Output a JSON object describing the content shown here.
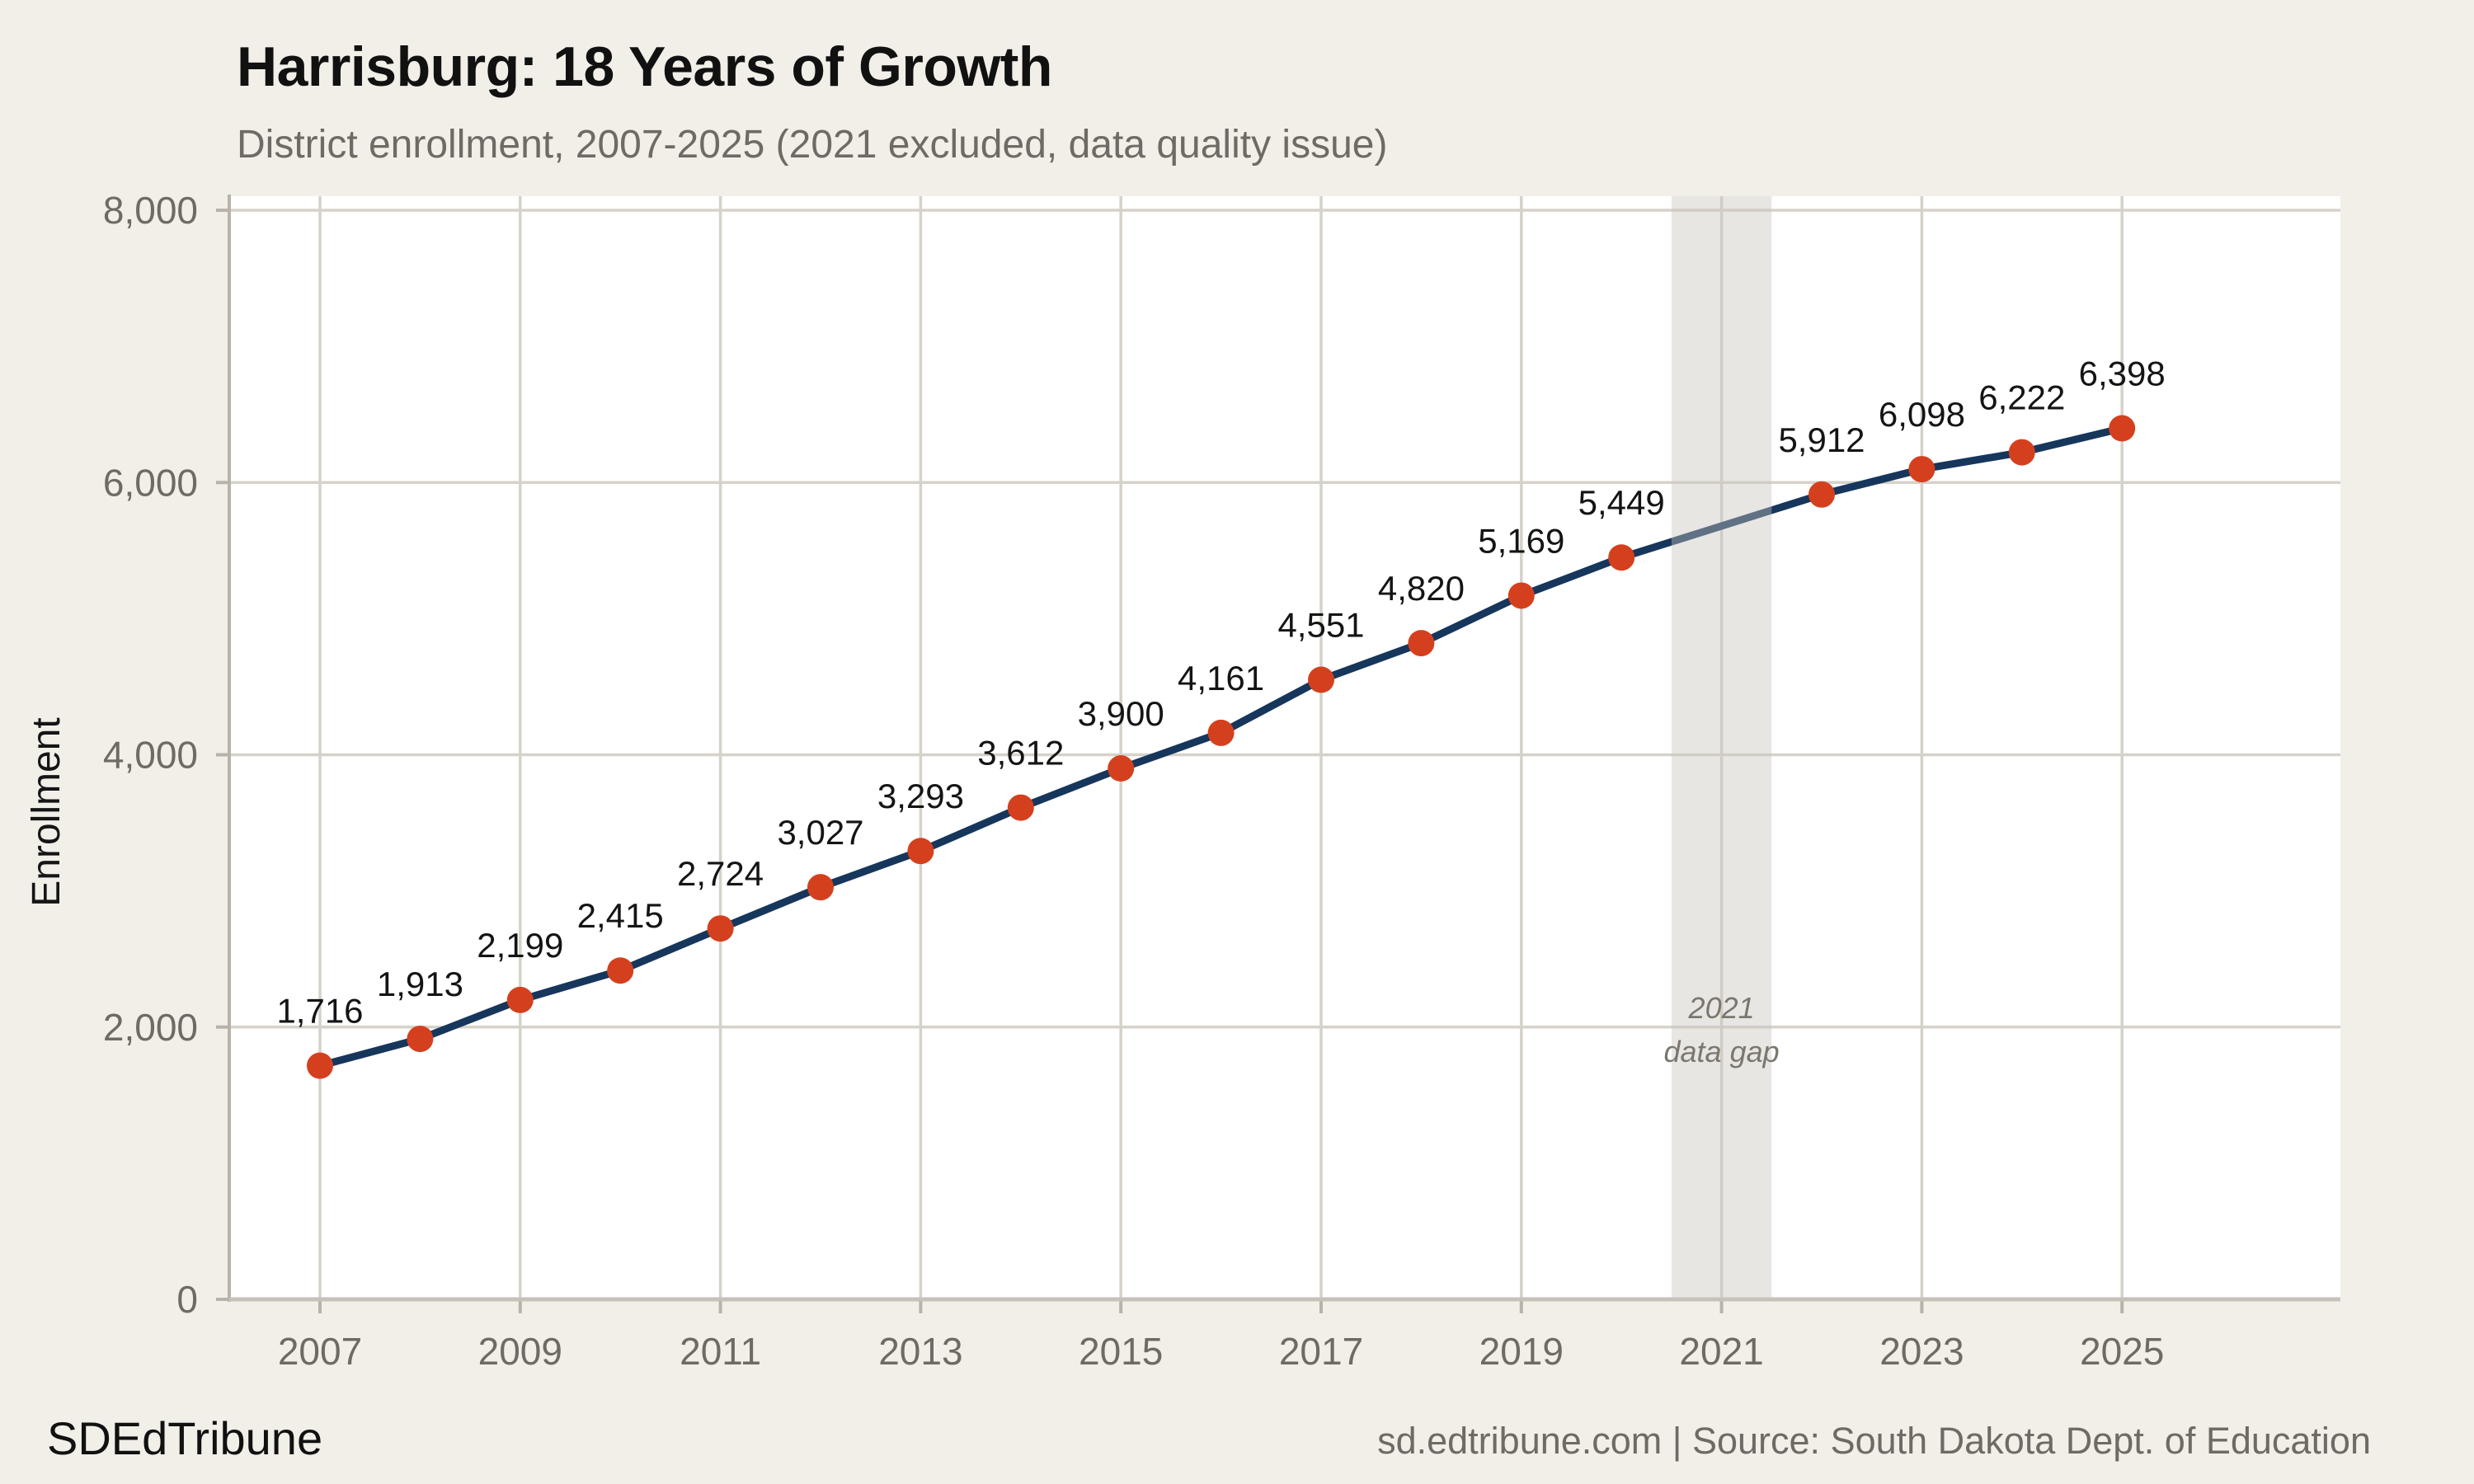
{
  "header": {
    "title": "Harrisburg: 18 Years of Growth",
    "subtitle": "District enrollment, 2007-2025 (2021 excluded, data quality issue)"
  },
  "footer": {
    "brand": "SDEdTribune",
    "source": "sd.edtribune.com | Source: South Dakota Dept. of Education"
  },
  "chart_data": {
    "type": "line",
    "title": "Harrisburg: 18 Years of Growth",
    "subtitle": "District enrollment, 2007-2025 (2021 excluded, data quality issue)",
    "xlabel": "",
    "ylabel": "Enrollment",
    "x": [
      2007,
      2008,
      2009,
      2010,
      2011,
      2012,
      2013,
      2014,
      2015,
      2016,
      2017,
      2018,
      2019,
      2020,
      2022,
      2023,
      2024,
      2025
    ],
    "series": [
      {
        "name": "District enrollment",
        "values": [
          1716,
          1913,
          2199,
          2415,
          2724,
          3027,
          3293,
          3612,
          3900,
          4161,
          4551,
          4820,
          5169,
          5449,
          5912,
          6098,
          6222,
          6398
        ]
      }
    ],
    "point_labels": [
      "1,716",
      "1,913",
      "2,199",
      "2,415",
      "2,724",
      "3,027",
      "3,293",
      "3,612",
      "3,900",
      "4,161",
      "4,551",
      "4,820",
      "5,169",
      "5,449",
      "5,912",
      "6,098",
      "6,222",
      "6,398"
    ],
    "excluded_year": 2021,
    "annotation": {
      "x": 2021,
      "lines": [
        "2021",
        "data gap"
      ]
    },
    "xticks": {
      "values": [
        2007,
        2009,
        2011,
        2013,
        2015,
        2017,
        2019,
        2021,
        2023,
        2025
      ],
      "labels": [
        "2007",
        "2009",
        "2011",
        "2013",
        "2015",
        "2017",
        "2019",
        "2021",
        "2023",
        "2025"
      ]
    },
    "yticks": {
      "values": [
        0,
        2000,
        4000,
        6000,
        8000
      ],
      "labels": [
        "0",
        "2,000",
        "4,000",
        "6,000",
        "8,000"
      ]
    },
    "ylim": [
      0,
      8000
    ],
    "xlim": [
      2006.1,
      2027.2
    ],
    "grid": true,
    "legend": "none",
    "colors": {
      "background": "#f2efe9",
      "plot_bg": "#ffffff",
      "grid": "#d6d2ca",
      "axis": "#b7b3ab",
      "baseline": "#c6c2ba",
      "line": "#16365c",
      "marker": "#d4401e",
      "band": "rgba(199,196,188,0.42)",
      "label_text": "#141414",
      "muted_text": "#6e6a64",
      "annotation_text": "#7b776f"
    }
  }
}
